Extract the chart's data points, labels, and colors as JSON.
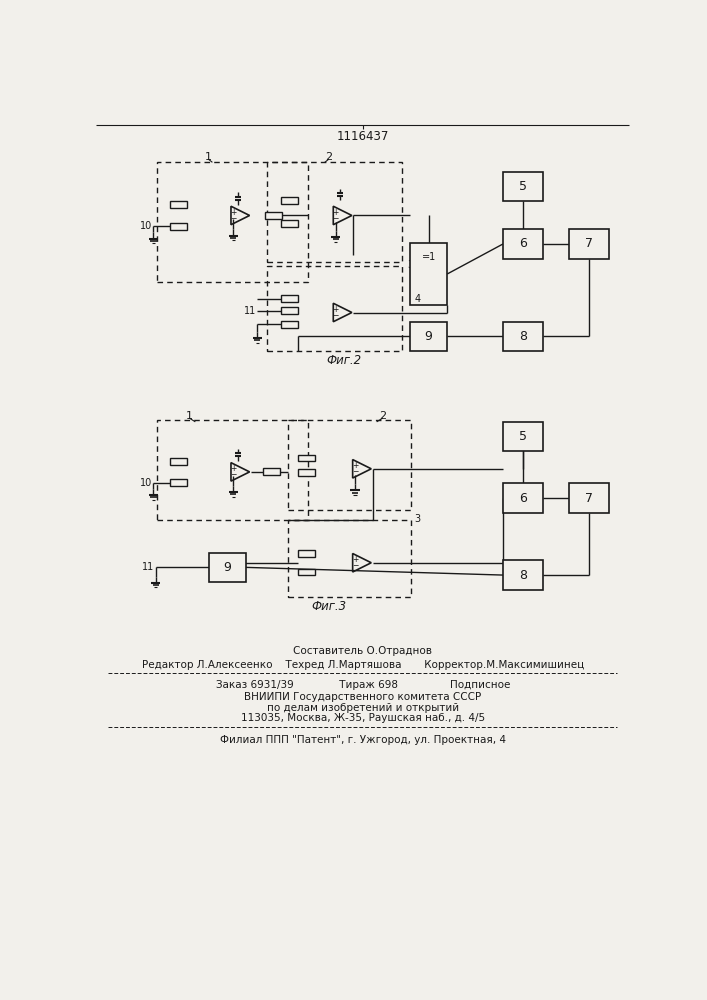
{
  "title": "1116437",
  "fig2_label": "Фиг.2",
  "fig3_label": "Фиг.3",
  "bg_color": "#f2f0eb",
  "line_color": "#1a1a1a",
  "footer_line1": "Составитель О.Отраднов",
  "footer_line2": "Редактор Л.Алексеенко    Техред Л.Мартяшова       Корректор.М.Максимишинец",
  "footer_line3": "Заказ 6931/39              Тираж 698                Подписное",
  "footer_line4": "ВНИИПИ Государственного комитета СССР",
  "footer_line5": "по делам изобретений и открытий",
  "footer_line6": "113035, Москва, Ж-35, Раушская наб., д. 4/5",
  "footer_line7": "Филиал ППП \"Патент\", г. Ужгород, ул. Проектная, 4"
}
